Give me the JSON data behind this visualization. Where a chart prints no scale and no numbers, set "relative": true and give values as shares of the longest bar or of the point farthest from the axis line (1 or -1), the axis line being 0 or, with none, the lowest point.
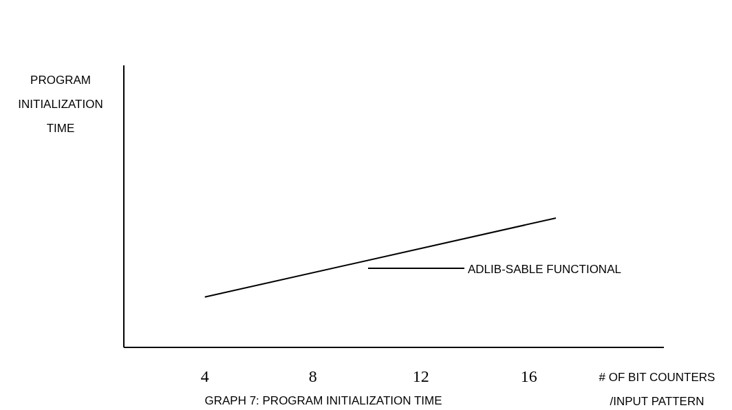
{
  "chart_data": {
    "type": "line",
    "title": "GRAPH 7: PROGRAM INITIALIZATION TIME",
    "xlabel": "# OF BIT COUNTERS\n/INPUT PATTERN",
    "annotations": [
      "PROGRAM\nINITIALIZATION\nTIME"
    ],
    "relative": true,
    "xlim": [
      1,
      21
    ],
    "xticks": [
      4,
      8,
      12,
      16
    ],
    "series": [
      {
        "name": "ADLIB-SABLE FUNCTIONAL",
        "color": "#000000",
        "x": [
          4,
          17
        ],
        "values": [
          0.39,
          1
        ]
      }
    ],
    "legend": "right",
    "grid": false,
    "marker": "none",
    "line_style": "solid"
  }
}
